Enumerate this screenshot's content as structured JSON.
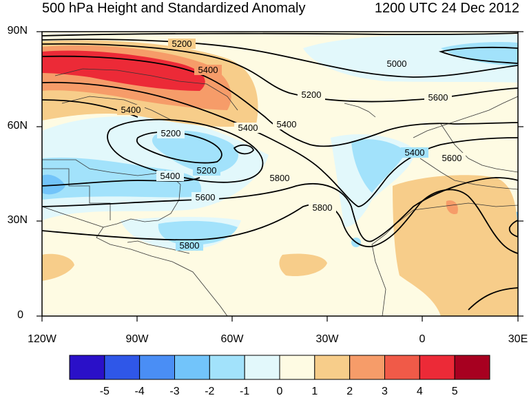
{
  "title_left": "500 hPa Height and Standardized Anomaly",
  "title_right": "1200 UTC 24 Dec 2012",
  "lat_labels": [
    "90N",
    "60N",
    "30N",
    "0"
  ],
  "lon_labels": [
    "120W",
    "90W",
    "60W",
    "30W",
    "0",
    "30E"
  ],
  "contour_labels": [
    "5200",
    "5400",
    "5200",
    "5400",
    "5400",
    "5200",
    "5400",
    "5400",
    "5600",
    "5800",
    "5000",
    "5200",
    "5600",
    "5800",
    "5400",
    "5600",
    "5800"
  ],
  "colorbar": {
    "labels": [
      "-5",
      "-4",
      "-3",
      "-2",
      "-1",
      "0",
      "1",
      "2",
      "3",
      "4",
      "5"
    ],
    "colors": [
      "#2a10c8",
      "#2f57e8",
      "#4a8ef5",
      "#72c4fa",
      "#a2e2fb",
      "#e2f8fb",
      "#fefbe3",
      "#f7cd8a",
      "#f69c69",
      "#f05a48",
      "#ec2a37",
      "#a70020"
    ]
  }
}
